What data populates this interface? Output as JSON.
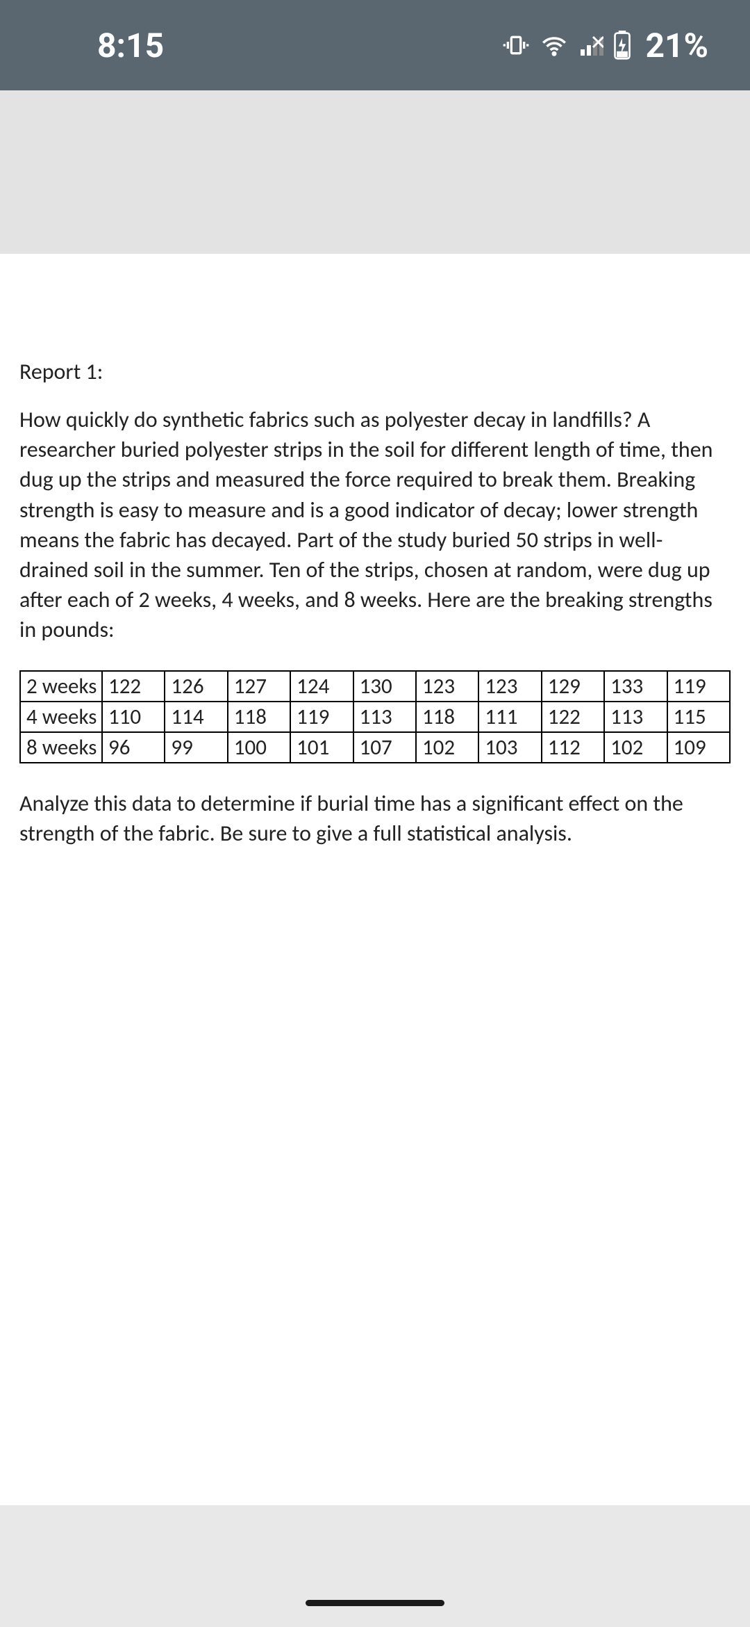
{
  "status": {
    "time": "8:15",
    "battery": "21%",
    "bar_bg": "#5a6770",
    "text_color": "#ffffff"
  },
  "document": {
    "title": "Report 1:",
    "body": "How quickly do synthetic fabrics such as polyester decay in landfills?  A researcher buried polyester strips in the soil for different length of time, then dug up the strips and measured the force required to break them.  Breaking strength is easy to measure and is a good indicator of decay; lower strength means the fabric has decayed.  Part of the study buried 50 strips in well-drained soil in the summer.  Ten of the strips, chosen at random, were dug up after each of 2 weeks, 4 weeks, and 8 weeks.  Here are the breaking strengths in pounds:",
    "table": {
      "rows": [
        [
          "2 weeks",
          "122",
          "126",
          "127",
          "124",
          "130",
          "123",
          "123",
          "129",
          "133",
          "119"
        ],
        [
          "4 weeks",
          "110",
          "114",
          "118",
          "119",
          "113",
          "118",
          "111",
          "122",
          "113",
          "115"
        ],
        [
          "8 weeks",
          "96",
          "99",
          "100",
          "101",
          "107",
          "102",
          "103",
          "112",
          "102",
          "109"
        ]
      ],
      "border_color": "#000000",
      "font_size": 31
    },
    "question": "Analyze this data to determine if burial time has a significant effect on the strength of the fabric.  Be sure to give a full statistical analysis.",
    "bg_color": "#ffffff",
    "text_color": "#222222"
  },
  "page_bg": "#e8e8e8"
}
